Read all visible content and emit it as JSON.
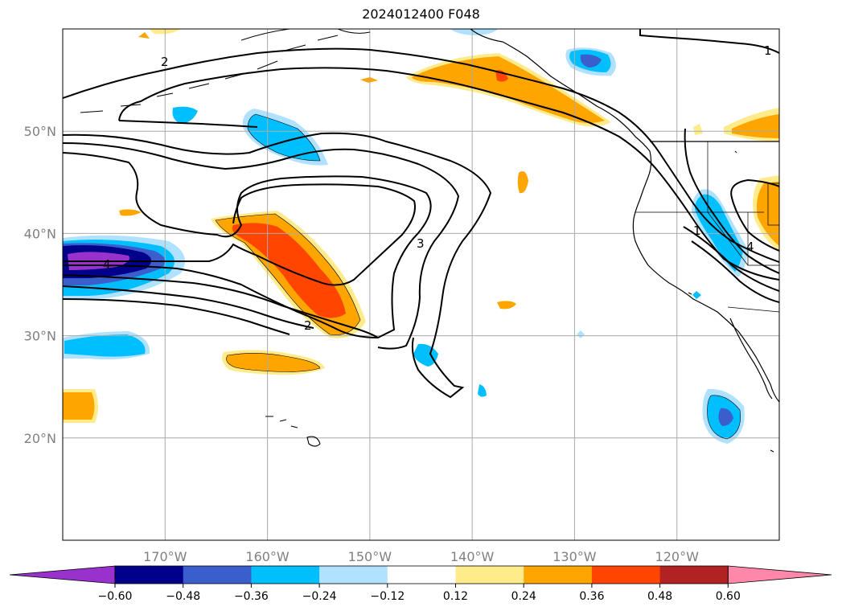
{
  "title": "2024012400 F048",
  "map": {
    "lon_range": [
      -180,
      -110
    ],
    "lat_range": [
      10,
      60
    ],
    "lon_ticks": [
      {
        "value": -170,
        "label": "170°W"
      },
      {
        "value": -160,
        "label": "160°W"
      },
      {
        "value": -150,
        "label": "150°W"
      },
      {
        "value": -140,
        "label": "140°W"
      },
      {
        "value": -130,
        "label": "130°W"
      },
      {
        "value": -120,
        "label": "120°W"
      }
    ],
    "lat_ticks": [
      {
        "value": 50,
        "label": "50°N"
      },
      {
        "value": 40,
        "label": "40°N"
      },
      {
        "value": 30,
        "label": "30°N"
      },
      {
        "value": 20,
        "label": "20°N"
      }
    ],
    "grid": true,
    "contour_labels": [
      "2",
      "3",
      "4",
      "2",
      "1",
      "4",
      "1"
    ]
  },
  "colorbar": {
    "colors": [
      "#9932cc",
      "#00008b",
      "#3a5fcd",
      "#00bfff",
      "#b0e2ff",
      "#ffffff",
      "#ffeb8a",
      "#ffa500",
      "#ff4500",
      "#b22222",
      "#ff88aa"
    ],
    "ticks": [
      "−0.60",
      "−0.48",
      "−0.36",
      "−0.24",
      "−0.12",
      "0.12",
      "0.24",
      "0.36",
      "0.48",
      "0.60"
    ]
  },
  "palette": {
    "pos1": "#ffeb8a",
    "pos2": "#ffa500",
    "pos3": "#ff4500",
    "pos4": "#b22222",
    "neg1": "#b0e2ff",
    "neg2": "#00bfff",
    "neg3": "#3a5fcd",
    "neg4": "#00008b",
    "neg5": "#9932cc"
  }
}
